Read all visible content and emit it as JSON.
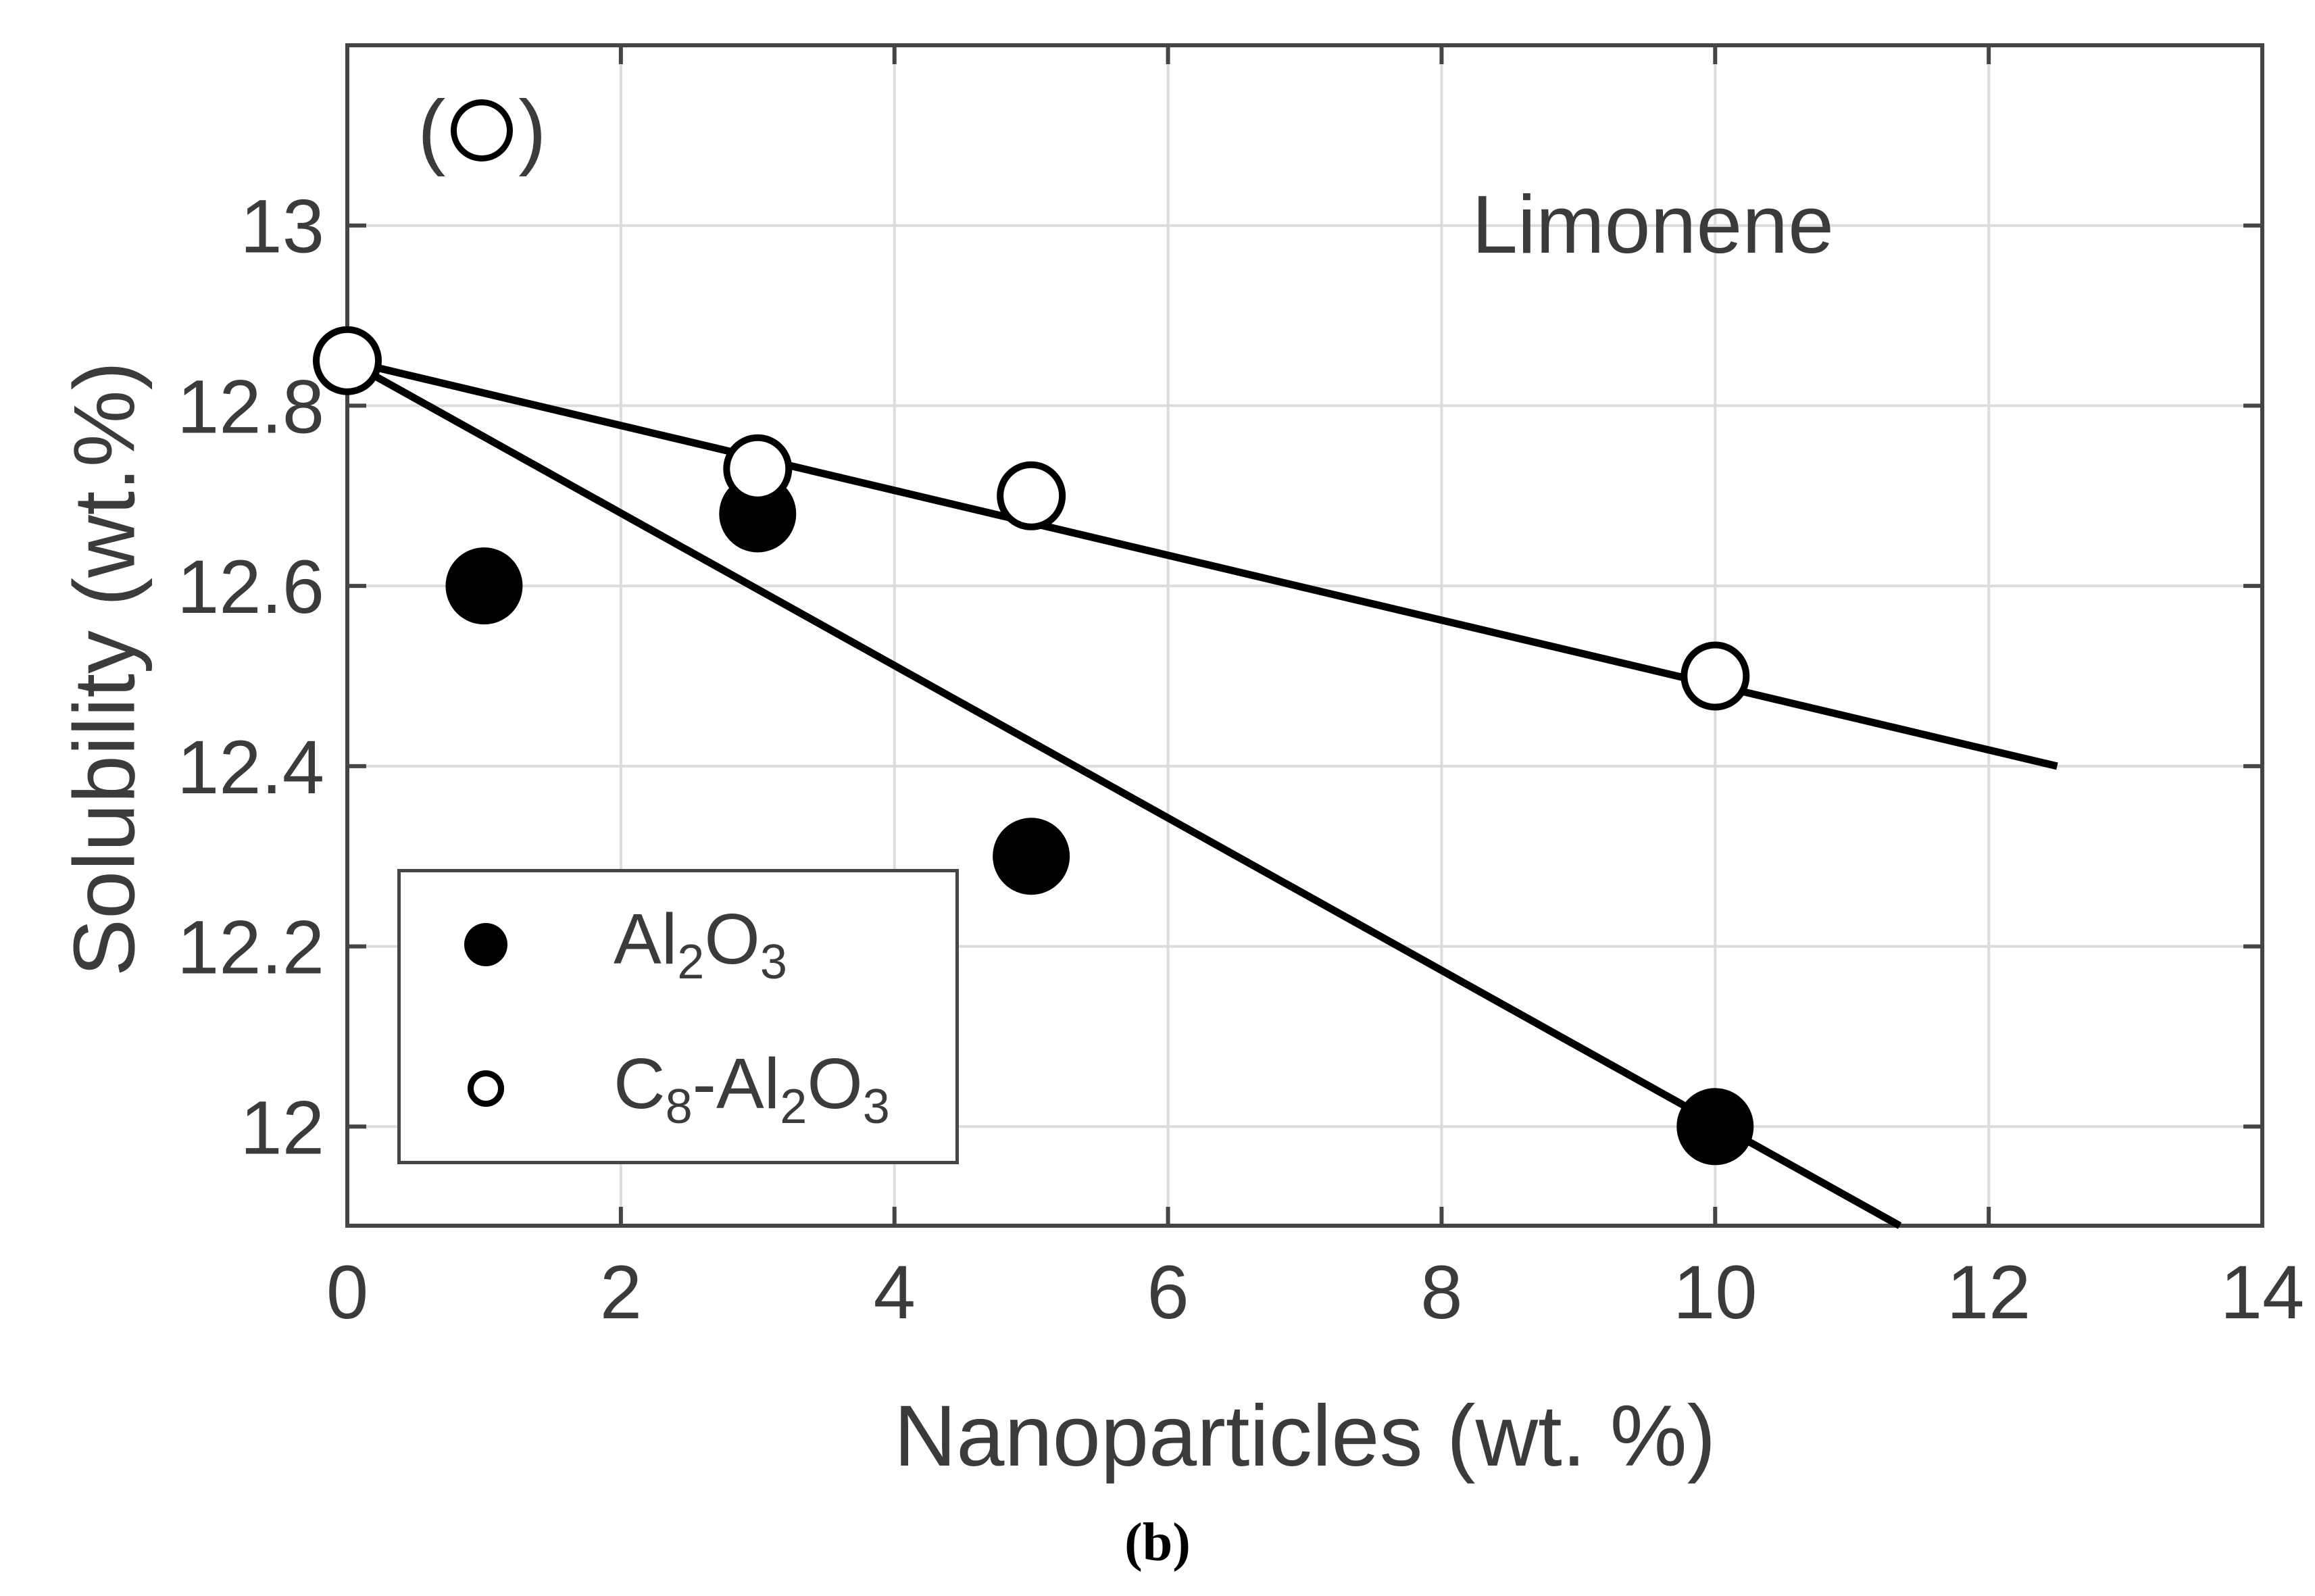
{
  "figure": {
    "panel_marker": {
      "open": "(",
      "close": ")"
    },
    "caption": "(b)"
  },
  "chart_data": {
    "type": "scatter",
    "title": "Limonene",
    "xlabel": "Nanoparticles (wt. %)",
    "ylabel": "Solubility (wt.%)",
    "xlim": [
      0,
      14
    ],
    "ylim": [
      11.89,
      13.2
    ],
    "x_ticks": [
      0,
      2,
      4,
      6,
      8,
      10,
      12,
      14
    ],
    "x_tick_labels": [
      "0",
      "2",
      "4",
      "6",
      "8",
      "10",
      "12",
      "14"
    ],
    "y_ticks": [
      12,
      12.2,
      12.4,
      12.6,
      12.8,
      13
    ],
    "y_tick_labels": [
      "12",
      "12.2",
      "12.4",
      "12.6",
      "12.8",
      "13"
    ],
    "grid": true,
    "legend_position": "lower-left",
    "series": [
      {
        "name": "Al2O3",
        "label_segments": [
          {
            "text": "Al"
          },
          {
            "text": "2",
            "sub": true
          },
          {
            "text": "O"
          },
          {
            "text": "3",
            "sub": true
          }
        ],
        "marker": "filled-circle",
        "color": "#000000",
        "points": [
          [
            1,
            12.6
          ],
          [
            3,
            12.68
          ],
          [
            5,
            12.3
          ],
          [
            10,
            12.0
          ]
        ],
        "trend_line": {
          "x1": 0,
          "y1": 12.85,
          "x2": 11.35,
          "y2": 11.89
        }
      },
      {
        "name": "C8-Al2O3",
        "label_segments": [
          {
            "text": "C"
          },
          {
            "text": "8",
            "sub": true
          },
          {
            "text": "-Al"
          },
          {
            "text": "2",
            "sub": true
          },
          {
            "text": "O"
          },
          {
            "text": "3",
            "sub": true
          }
        ],
        "marker": "open-circle",
        "color": "#000000",
        "points": [
          [
            0,
            12.85
          ],
          [
            3,
            12.73
          ],
          [
            5,
            12.7
          ],
          [
            10,
            12.5
          ]
        ],
        "trend_line": {
          "x1": 0,
          "y1": 12.85,
          "x2": 12.5,
          "y2": 12.4
        }
      }
    ],
    "colors": {
      "marker": "#000000",
      "line": "#000000",
      "grid": "#dcdcdc",
      "axis": "#454545",
      "text": "#3b3b3b"
    }
  }
}
